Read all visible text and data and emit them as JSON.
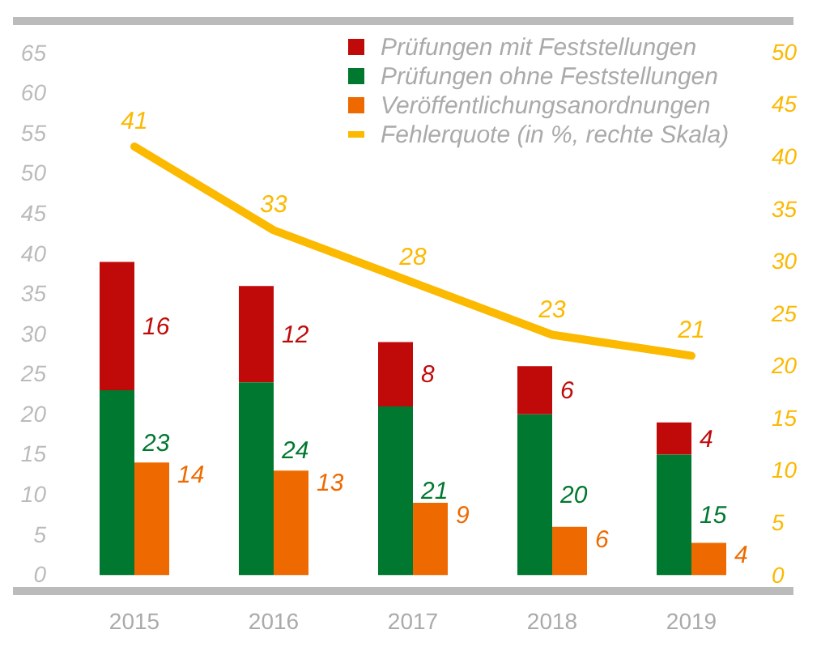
{
  "chart_data": {
    "type": "bar",
    "data_labels": true,
    "legend": "top right",
    "grid": false,
    "categories": [
      "2015",
      "2016",
      "2017",
      "2018",
      "2019"
    ],
    "ylim": [
      -2,
      69
    ],
    "yticks": [
      0,
      5,
      10,
      15,
      20,
      25,
      30,
      35,
      40,
      45,
      50,
      55,
      60,
      65
    ],
    "y2lim": [
      -1.5,
      53
    ],
    "y2ticks": [
      0,
      5,
      10,
      15,
      20,
      25,
      30,
      35,
      40,
      45,
      50
    ],
    "series": [
      {
        "name": "Prüfungen mit Feststellungen",
        "color": "#c00a0a",
        "values": [
          16,
          12,
          8,
          6,
          4
        ],
        "base": [
          23,
          24,
          21,
          20,
          15
        ]
      },
      {
        "name": "Prüfungen ohne Feststellungen",
        "color": "#00782f",
        "values": [
          23,
          24,
          21,
          20,
          15
        ]
      },
      {
        "name": "Veröffentlichungsanordnungen",
        "color": "#ee6a00",
        "values": [
          14,
          13,
          9,
          6,
          4
        ]
      },
      {
        "name": "Fehlerquote (in %, rechte Skala)",
        "type": "line",
        "axis": "y2",
        "color": "#fbb900",
        "values": [
          41,
          33,
          28,
          23,
          21
        ]
      }
    ]
  }
}
